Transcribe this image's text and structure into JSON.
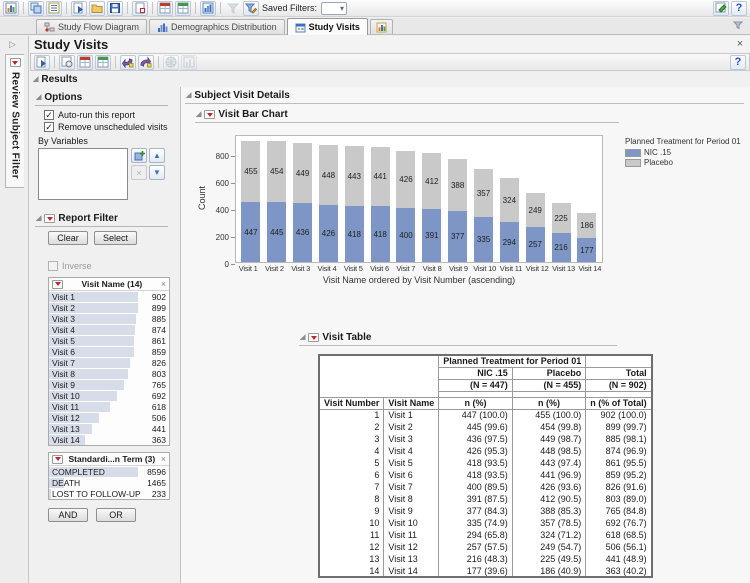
{
  "icons": {
    "close": "×",
    "help": "?",
    "expand": "▷",
    "section_open": "◢",
    "dropdown": "▾",
    "check": "✓",
    "up": "▲",
    "down": "▼",
    "remove": "×"
  },
  "toolbar_main": {
    "saved_filters_label": "Saved Filters:"
  },
  "tabs": {
    "items": [
      {
        "label": "Study Flow Diagram",
        "active": false
      },
      {
        "label": "Demographics Distribution",
        "active": false
      },
      {
        "label": "Study Visits",
        "active": true
      }
    ]
  },
  "title": "Study Visits",
  "review_filter_tab": "Review Subject Filter",
  "results_title": "Results",
  "options": {
    "title": "Options",
    "checkbox_autorun": "Auto-run this report",
    "checkbox_remove": "Remove unscheduled visits",
    "by_variables_label": "By Variables"
  },
  "report_filter": {
    "title": "Report Filter",
    "clear": "Clear",
    "select": "Select",
    "inverse": "Inverse",
    "and": "AND",
    "or": "OR",
    "filters": [
      {
        "title": "Visit Name (14)",
        "rows": [
          {
            "label": "Visit 1",
            "count": 902
          },
          {
            "label": "Visit 2",
            "count": 899
          },
          {
            "label": "Visit 3",
            "count": 885
          },
          {
            "label": "Visit 4",
            "count": 874
          },
          {
            "label": "Visit 5",
            "count": 861
          },
          {
            "label": "Visit 6",
            "count": 859
          },
          {
            "label": "Visit 7",
            "count": 826
          },
          {
            "label": "Visit 8",
            "count": 803
          },
          {
            "label": "Visit 9",
            "count": 765
          },
          {
            "label": "Visit 10",
            "count": 692
          },
          {
            "label": "Visit 11",
            "count": 618
          },
          {
            "label": "Visit 12",
            "count": 506
          },
          {
            "label": "Visit 13",
            "count": 441
          },
          {
            "label": "Visit 14",
            "count": 363
          }
        ]
      },
      {
        "title": "Standardi...n Term (3)",
        "rows": [
          {
            "label": "COMPLETED",
            "count": 8596
          },
          {
            "label": "DEATH",
            "count": 1465
          },
          {
            "label": "LOST TO FOLLOW-UP",
            "count": 233
          }
        ]
      }
    ]
  },
  "main": {
    "subject_visit_details_title": "Subject Visit Details",
    "visit_bar_chart_title": "Visit Bar Chart",
    "visit_table_title": "Visit Table"
  },
  "chart_data": {
    "type": "bar",
    "stacked": true,
    "categories": [
      "Visit 1",
      "Visit 2",
      "Visit 3",
      "Visit 4",
      "Visit 5",
      "Visit 6",
      "Visit 7",
      "Visit 8",
      "Visit 9",
      "Visit 10",
      "Visit 11",
      "Visit 12",
      "Visit 13",
      "Visit 14"
    ],
    "series": [
      {
        "name": "NIC .15",
        "color": "#7d96c6",
        "values": [
          447,
          445,
          436,
          426,
          418,
          418,
          400,
          391,
          377,
          335,
          294,
          257,
          216,
          177
        ]
      },
      {
        "name": "Placebo",
        "color": "#c9c9ca",
        "values": [
          455,
          454,
          449,
          448,
          443,
          441,
          426,
          412,
          388,
          357,
          324,
          249,
          225,
          186
        ]
      }
    ],
    "totals": [
      902,
      899,
      885,
      874,
      861,
      859,
      826,
      803,
      765,
      692,
      618,
      506,
      441,
      363
    ],
    "title": "Visit Bar Chart",
    "xlabel": "Visit Name ordered by Visit Number (ascending)",
    "ylabel": "Count",
    "ylim": [
      0,
      950
    ],
    "yticks": [
      0,
      200,
      400,
      600,
      800
    ],
    "legend_title": "Planned Treatment for Period 01",
    "legend_position": "right",
    "grid": false
  },
  "visit_table": {
    "group_header": "Planned Treatment for Period 01",
    "col_headers": [
      "NIC .15",
      "Placebo",
      "Total"
    ],
    "n_row": [
      "(N = 447)",
      "(N = 455)",
      "(N = 902)"
    ],
    "header_row": [
      "Visit Number",
      "Visit Name",
      "n (%)",
      "n (%)",
      "n (% of Total)"
    ],
    "rows": [
      [
        "1",
        "Visit 1",
        "447 (100.0)",
        "455 (100.0)",
        "902 (100.0)"
      ],
      [
        "2",
        "Visit 2",
        "445 (99.6)",
        "454 (99.8)",
        "899 (99.7)"
      ],
      [
        "3",
        "Visit 3",
        "436 (97.5)",
        "449 (98.7)",
        "885 (98.1)"
      ],
      [
        "4",
        "Visit 4",
        "426 (95.3)",
        "448 (98.5)",
        "874 (96.9)"
      ],
      [
        "5",
        "Visit 5",
        "418 (93.5)",
        "443 (97.4)",
        "861 (95.5)"
      ],
      [
        "6",
        "Visit 6",
        "418 (93.5)",
        "441 (96.9)",
        "859 (95.2)"
      ],
      [
        "7",
        "Visit 7",
        "400 (89.5)",
        "426 (93.6)",
        "826 (91.6)"
      ],
      [
        "8",
        "Visit 8",
        "391 (87.5)",
        "412 (90.5)",
        "803 (89.0)"
      ],
      [
        "9",
        "Visit 9",
        "377 (84.3)",
        "388 (85.3)",
        "765 (84.8)"
      ],
      [
        "10",
        "Visit 10",
        "335 (74.9)",
        "357 (78.5)",
        "692 (76.7)"
      ],
      [
        "11",
        "Visit 11",
        "294 (65.8)",
        "324 (71.2)",
        "618 (68.5)"
      ],
      [
        "12",
        "Visit 12",
        "257 (57.5)",
        "249 (54.7)",
        "506 (56.1)"
      ],
      [
        "13",
        "Visit 13",
        "216 (48.3)",
        "225 (49.5)",
        "441 (48.9)"
      ],
      [
        "14",
        "Visit 14",
        "177 (39.6)",
        "186 (40.9)",
        "363 (40.2)"
      ]
    ]
  }
}
